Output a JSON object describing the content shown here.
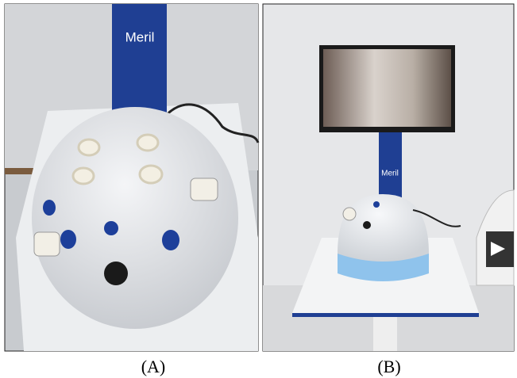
{
  "panels": [
    {
      "label": "(A)",
      "brand": "Meril"
    },
    {
      "label": "(B)",
      "brand": "Meril"
    }
  ]
}
